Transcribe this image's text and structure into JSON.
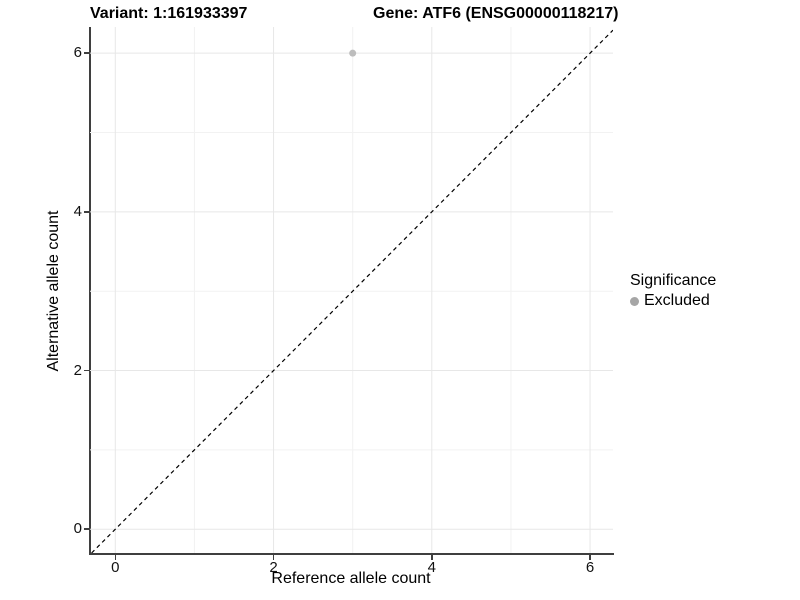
{
  "chart_data": {
    "type": "scatter",
    "titles": {
      "left": "Variant: 1:161933397",
      "right": "Gene: ATF6 (ENSG00000118217)"
    },
    "xlabel": "Reference allele count",
    "ylabel": "Alternative allele count",
    "xlim": [
      -0.32,
      6.29
    ],
    "ylim": [
      -0.3,
      6.33
    ],
    "xticks": [
      0,
      2,
      4,
      6
    ],
    "yticks": [
      0,
      2,
      4,
      6
    ],
    "minor_ticks": [
      1,
      3,
      5
    ],
    "grid": "on",
    "grid_major_color": "#e7e7e7",
    "grid_minor_color": "#f2f2f2",
    "identity_line": {
      "slope": 1,
      "intercept": 0,
      "style": "dashed",
      "color": "#000000"
    },
    "series": [
      {
        "name": "Excluded",
        "color": "#bdbdbd",
        "points": [
          {
            "x": 3,
            "y": 6
          }
        ]
      }
    ],
    "legend": {
      "title": "Significance",
      "position": "right",
      "items": [
        {
          "label": "Excluded",
          "color": "#a6a6a6"
        }
      ]
    }
  }
}
